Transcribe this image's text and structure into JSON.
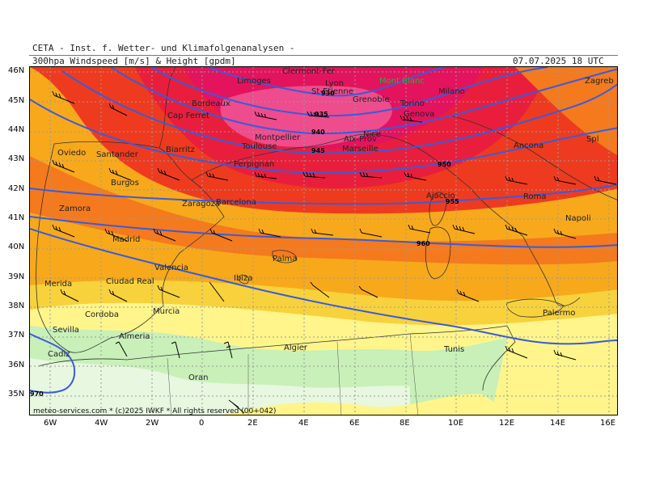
{
  "header": {
    "institution": "CETA - Inst. f. Wetter- und Klimafolgenanalysen -",
    "product": "300hpa Windspeed [m/s] & Height [gpdm]",
    "valid_time": "07.07.2025 18 UTC"
  },
  "credit": "meteo-services.com * (c)2025 IWKF * All rights reserved (00+042)",
  "axes": {
    "x_ticks": [
      "6W",
      "4W",
      "2W",
      "0",
      "2E",
      "4E",
      "6E",
      "8E",
      "10E",
      "12E",
      "14E",
      "16E"
    ],
    "y_ticks": [
      "46N",
      "45N",
      "44N",
      "43N",
      "42N",
      "41N",
      "40N",
      "39N",
      "38N",
      "37N",
      "36N",
      "35N"
    ]
  },
  "cities": [
    "Clermont-Fer",
    "Limoges",
    "Lyon",
    "Mont Blanc",
    "Bordeaux",
    "St-Etienne",
    "Grenoble",
    "Torino",
    "Milano",
    "Zagreb",
    "Cap Ferret",
    "Montpellier",
    "Genova",
    "Toulouse",
    "Aix-Prov",
    "Nice",
    "Marseille",
    "Spl",
    "Oviedo",
    "Santander",
    "Biarritz",
    "Ancona",
    "Perpignan",
    "Burgos",
    "Ajaccio",
    "Roma",
    "Zaragoza",
    "Barcelona",
    "Zamora",
    "Napoli",
    "Madrid",
    "Palma",
    "Valencia",
    "Merida",
    "Ciudad Real",
    "Ibiza",
    "Cordoba",
    "Murcia",
    "Palermo",
    "Sevilla",
    "Almeria",
    "Algier",
    "Tunis",
    "Cadiz",
    "Oran"
  ],
  "contour_labels": [
    "930",
    "935",
    "940",
    "945",
    "950",
    "955",
    "960",
    "970"
  ],
  "colors": {
    "speed_bands": [
      "#e8f7e0",
      "#c8f0b8",
      "#fff58a",
      "#f8d23c",
      "#f7a91b",
      "#f47a1d",
      "#ee3b1f",
      "#e91e3c",
      "#e4135e"
    ],
    "height_contour": "#3a5bdc",
    "mont_blanc_label": "#22b33a"
  }
}
